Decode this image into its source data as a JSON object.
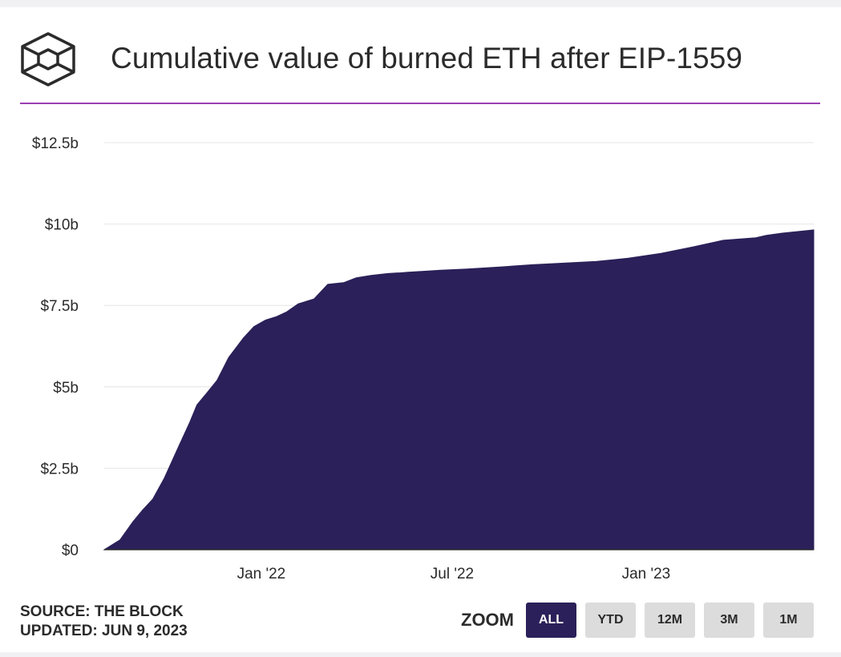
{
  "header": {
    "title": "Cumulative value of burned ETH after EIP-1559",
    "logo_icon": "the-block-cube-logo",
    "divider_color": "#9b3fb3"
  },
  "chart_data": {
    "type": "area",
    "title": "Cumulative value of burned ETH after EIP-1559",
    "xlabel": "",
    "ylabel": "",
    "fill_color": "#2b2059",
    "grid": true,
    "y_ticks": [
      "$0",
      "$2.5b",
      "$5b",
      "$7.5b",
      "$10b",
      "$12.5b"
    ],
    "y_tick_values": [
      0,
      2.5,
      5,
      7.5,
      10,
      12.5
    ],
    "ylim": [
      0,
      12.5
    ],
    "x_ticks": [
      "Jan '22",
      "Jul '22",
      "Jan '23"
    ],
    "x_tick_dates": [
      "2022-01-01",
      "2022-07-01",
      "2023-01-01"
    ],
    "xlim": [
      "2021-08-05",
      "2023-06-09"
    ],
    "units": "USD billions",
    "x": [
      "2021-08-05",
      "2021-08-20",
      "2021-09-01",
      "2021-09-10",
      "2021-09-20",
      "2021-10-01",
      "2021-10-15",
      "2021-10-25",
      "2021-11-01",
      "2021-11-10",
      "2021-11-20",
      "2021-12-01",
      "2021-12-15",
      "2021-12-25",
      "2022-01-05",
      "2022-01-15",
      "2022-01-25",
      "2022-02-05",
      "2022-02-20",
      "2022-03-05",
      "2022-03-20",
      "2022-04-01",
      "2022-04-15",
      "2022-05-01",
      "2022-05-10",
      "2022-05-12",
      "2022-05-20",
      "2022-06-05",
      "2022-06-20",
      "2022-07-15",
      "2022-08-15",
      "2022-09-15",
      "2022-10-15",
      "2022-11-15",
      "2022-12-15",
      "2023-01-15",
      "2023-02-15",
      "2023-03-15",
      "2023-04-15",
      "2023-04-25",
      "2023-05-10",
      "2023-06-09"
    ],
    "series": [
      {
        "values": [
          0,
          0.3,
          0.85,
          1.2,
          1.55,
          2.2,
          3.2,
          3.9,
          4.45,
          4.8,
          5.2,
          5.9,
          6.5,
          6.85,
          7.05,
          7.15,
          7.3,
          7.55,
          7.7,
          8.15,
          8.2,
          8.35,
          8.42,
          8.48,
          8.5,
          8.5,
          8.52,
          8.55,
          8.58,
          8.62,
          8.68,
          8.75,
          8.8,
          8.85,
          8.95,
          9.1,
          9.3,
          9.5,
          9.58,
          9.65,
          9.72,
          9.82
        ]
      }
    ]
  },
  "footer": {
    "source": "SOURCE: THE BLOCK",
    "updated": "UPDATED: JUN 9, 2023"
  },
  "zoom": {
    "label": "ZOOM",
    "buttons": [
      "ALL",
      "YTD",
      "12M",
      "3M",
      "1M"
    ],
    "selected": "ALL"
  }
}
